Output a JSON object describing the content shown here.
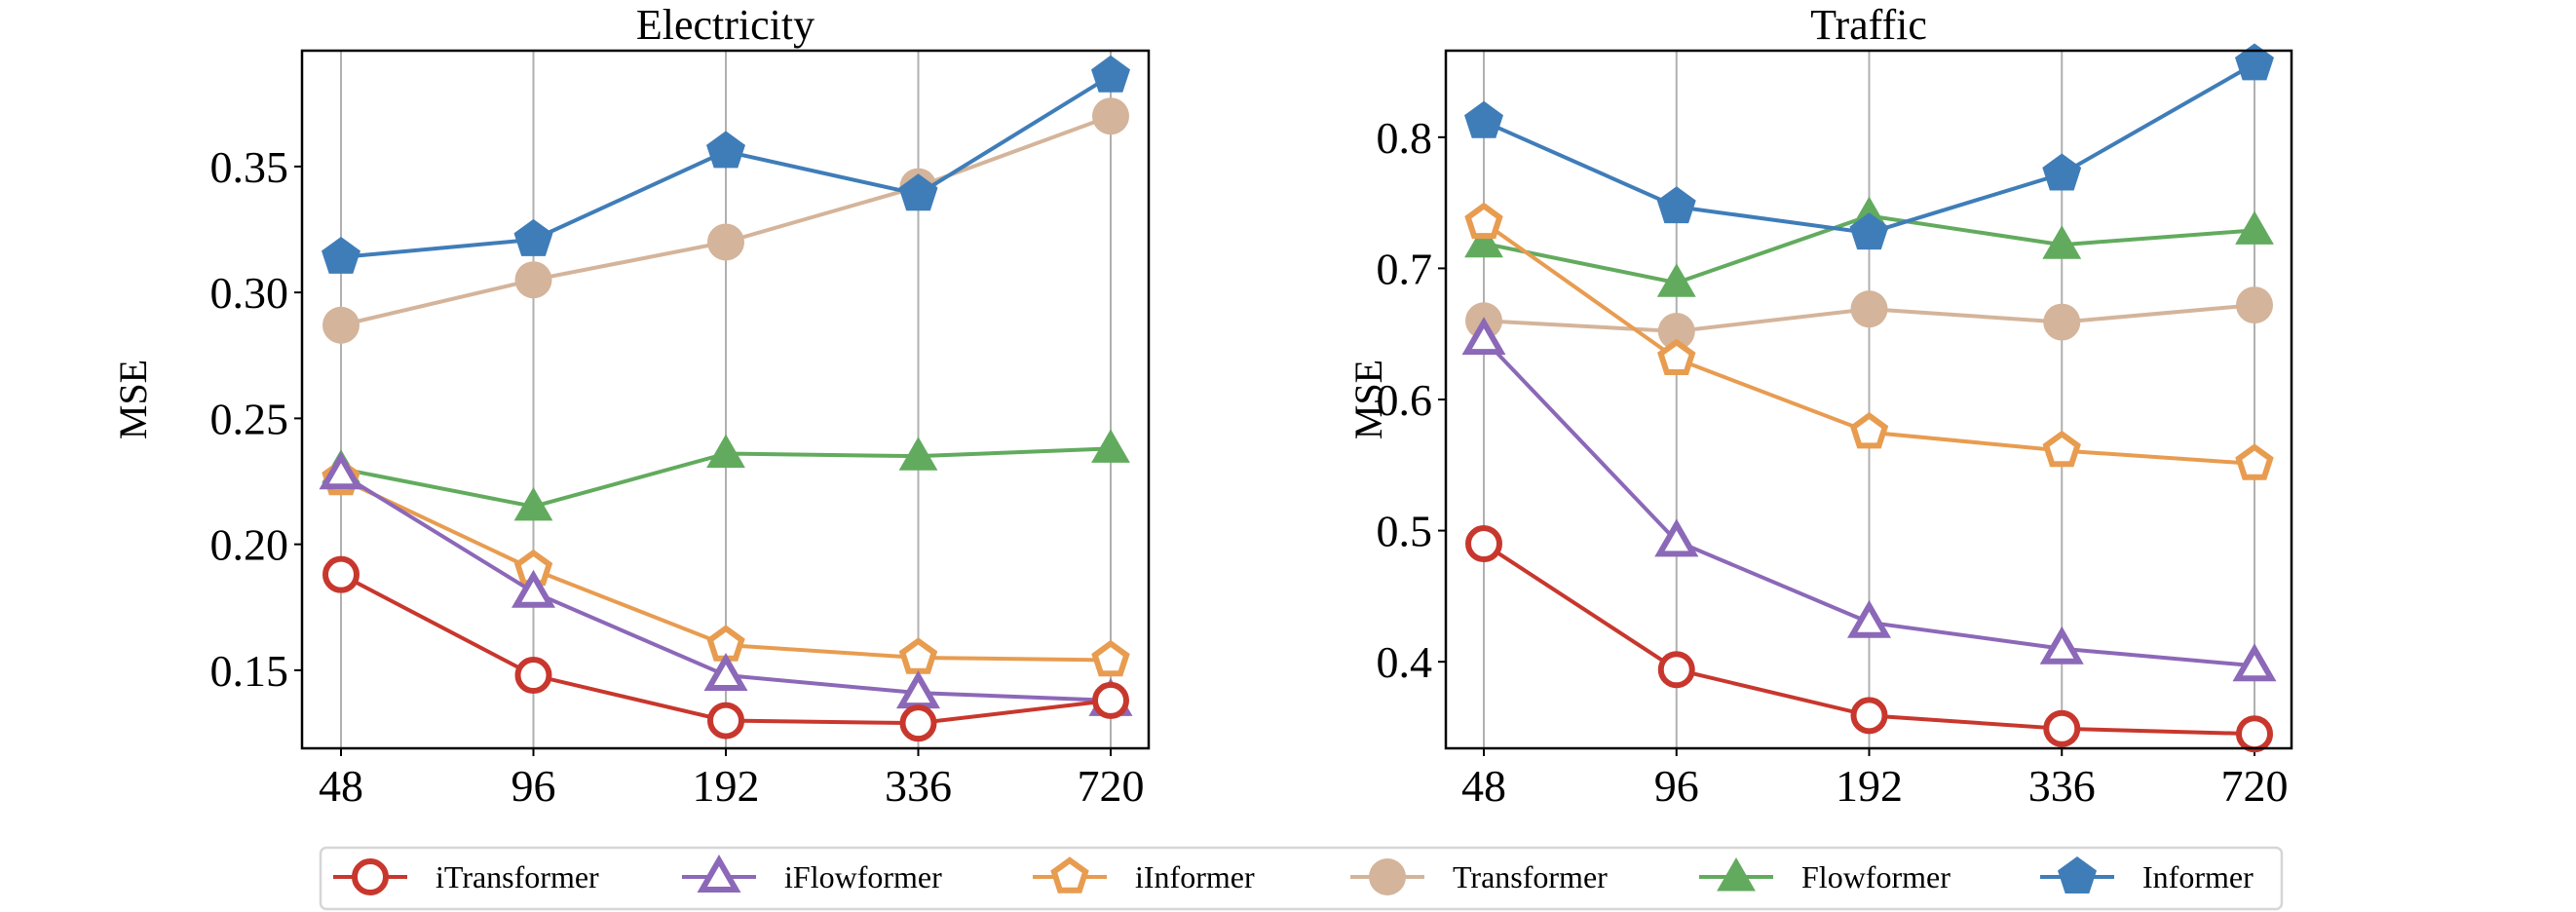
{
  "chart_data": [
    {
      "type": "line",
      "title": "Electricity",
      "xlabel": "",
      "ylabel": "MSE",
      "categories": [
        "48",
        "96",
        "192",
        "336",
        "720"
      ],
      "yticks": [
        "0.15",
        "0.20",
        "0.25",
        "0.30",
        "0.35"
      ],
      "ytick_values": [
        0.15,
        0.2,
        0.25,
        0.3,
        0.35
      ],
      "ylim": [
        0.119,
        0.396
      ],
      "grid": "vertical",
      "series": [
        {
          "name": "iTransformer",
          "values": [
            0.188,
            0.148,
            0.13,
            0.129,
            0.138
          ]
        },
        {
          "name": "iFlowformer",
          "values": [
            0.228,
            0.181,
            0.148,
            0.141,
            0.138
          ]
        },
        {
          "name": "iInformer",
          "values": [
            0.226,
            0.19,
            0.16,
            0.155,
            0.154
          ]
        },
        {
          "name": "Transformer",
          "values": [
            0.287,
            0.305,
            0.32,
            0.342,
            0.37
          ]
        },
        {
          "name": "Flowformer",
          "values": [
            0.23,
            0.215,
            0.236,
            0.235,
            0.238
          ]
        },
        {
          "name": "Informer",
          "values": [
            0.314,
            0.321,
            0.356,
            0.339,
            0.386
          ]
        }
      ]
    },
    {
      "type": "line",
      "title": "Traffic",
      "xlabel": "",
      "ylabel": "MSE",
      "categories": [
        "48",
        "96",
        "192",
        "336",
        "720"
      ],
      "yticks": [
        "0.4",
        "0.5",
        "0.6",
        "0.7",
        "0.8"
      ],
      "ytick_values": [
        0.4,
        0.5,
        0.6,
        0.7,
        0.8
      ],
      "ylim": [
        0.334,
        0.866
      ],
      "grid": "vertical",
      "series": [
        {
          "name": "iTransformer",
          "values": [
            0.49,
            0.394,
            0.359,
            0.349,
            0.345
          ]
        },
        {
          "name": "iFlowformer",
          "values": [
            0.646,
            0.492,
            0.43,
            0.41,
            0.397
          ]
        },
        {
          "name": "iInformer",
          "values": [
            0.735,
            0.631,
            0.575,
            0.561,
            0.551
          ]
        },
        {
          "name": "Transformer",
          "values": [
            0.66,
            0.652,
            0.669,
            0.659,
            0.672
          ]
        },
        {
          "name": "Flowformer",
          "values": [
            0.719,
            0.689,
            0.74,
            0.718,
            0.729
          ]
        },
        {
          "name": "Informer",
          "values": [
            0.812,
            0.747,
            0.727,
            0.772,
            0.856
          ]
        }
      ]
    }
  ],
  "legend": {
    "placement": "bottom",
    "entries": [
      {
        "name": "iTransformer",
        "color": "#c8372d",
        "marker": "hollow-circle"
      },
      {
        "name": "iFlowformer",
        "color": "#8c68b8",
        "marker": "hollow-triangle"
      },
      {
        "name": "iInformer",
        "color": "#e89c50",
        "marker": "hollow-pentagon"
      },
      {
        "name": "Transformer",
        "color": "#d4b49a",
        "marker": "filled-circle"
      },
      {
        "name": "Flowformer",
        "color": "#62ab5e",
        "marker": "filled-triangle"
      },
      {
        "name": "Informer",
        "color": "#3f7db9",
        "marker": "filled-pentagon"
      }
    ]
  }
}
